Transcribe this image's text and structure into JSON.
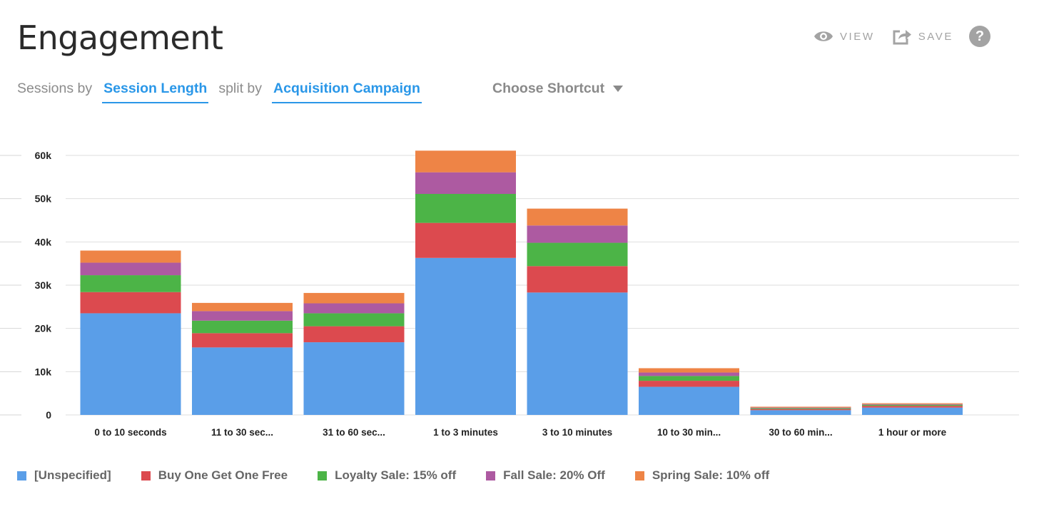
{
  "header": {
    "title": "Engagement",
    "view_label": "VIEW",
    "save_label": "SAVE",
    "help_label": "?"
  },
  "query": {
    "prefix": "Sessions by",
    "measure": "Session Length",
    "split_text": "split by",
    "split": "Acquisition Campaign",
    "shortcut": "Choose Shortcut"
  },
  "colors": {
    "accent": "#2a97e8",
    "series": [
      "#5a9ee8",
      "#dc4a4f",
      "#4cb447",
      "#ad5aa1",
      "#ee8446"
    ]
  },
  "chart_data": {
    "type": "bar",
    "stacked": true,
    "categories": [
      "0 to 10 seconds",
      "11 to 30 sec...",
      "31 to 60 sec...",
      "1 to 3 minutes",
      "3 to 10 minutes",
      "10 to 30 min...",
      "30 to 60 min...",
      "1 hour or more"
    ],
    "series": [
      {
        "name": "[Unspecified]",
        "color": "#5a9ee8",
        "values": [
          23500,
          15600,
          16800,
          36300,
          28300,
          6500,
          1100,
          1700
        ]
      },
      {
        "name": "Buy One Get One Free",
        "color": "#dc4a4f",
        "values": [
          4900,
          3300,
          3700,
          8100,
          6100,
          1400,
          250,
          400
        ]
      },
      {
        "name": "Loyalty Sale: 15% off",
        "color": "#4cb447",
        "values": [
          3900,
          2900,
          3000,
          6700,
          5400,
          1100,
          200,
          250
        ]
      },
      {
        "name": "Fall Sale: 20% Off",
        "color": "#ad5aa1",
        "values": [
          2900,
          2200,
          2300,
          5000,
          4000,
          800,
          150,
          150
        ]
      },
      {
        "name": "Spring Sale: 10% off",
        "color": "#ee8446",
        "values": [
          2800,
          1900,
          2400,
          5000,
          3900,
          1000,
          200,
          200
        ]
      }
    ],
    "yticks": [
      0,
      10000,
      20000,
      30000,
      40000,
      50000,
      60000
    ],
    "ytick_labels": [
      "0",
      "10k",
      "20k",
      "30k",
      "40k",
      "50k",
      "60k"
    ],
    "ylim": [
      0,
      61000
    ],
    "grid": true,
    "legend_position": "bottom-left"
  }
}
